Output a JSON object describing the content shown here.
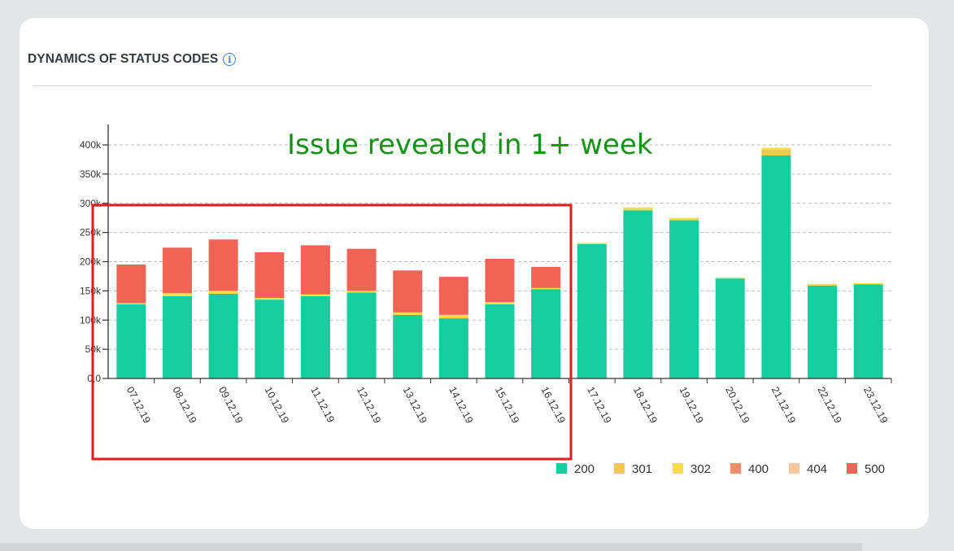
{
  "header": {
    "title": "DYNAMICS OF STATUS CODES",
    "info_icon": "info-icon"
  },
  "annotation": {
    "text": "Issue revealed in 1+ week",
    "color": "#169216"
  },
  "highlight": {
    "color": "#e31b1b",
    "covers": "07.12.19 – 16.12.19"
  },
  "colors": {
    "200": "#16cd9d",
    "301": "#f2c94c",
    "302": "#f7dc47",
    "400": "#f28e6b",
    "404": "#f7c79e",
    "500": "#ef6454"
  },
  "chart_data": {
    "type": "bar",
    "stacked": true,
    "title": "DYNAMICS OF STATUS CODES",
    "xlabel": "",
    "ylabel": "",
    "ylim": [
      0,
      420000
    ],
    "grid": true,
    "legend": "bottom-right",
    "y_ticks": [
      {
        "value": 0,
        "label": "0,0"
      },
      {
        "value": 50000,
        "label": "50k"
      },
      {
        "value": 100000,
        "label": "100k"
      },
      {
        "value": 150000,
        "label": "150k"
      },
      {
        "value": 200000,
        "label": "200k"
      },
      {
        "value": 250000,
        "label": "250k"
      },
      {
        "value": 300000,
        "label": "300k"
      },
      {
        "value": 350000,
        "label": "350k"
      },
      {
        "value": 400000,
        "label": "400k"
      }
    ],
    "categories": [
      "07.12.19",
      "08.12.19",
      "09.12.19",
      "10.12.19",
      "11.12.19",
      "12.12.19",
      "13.12.19",
      "14.12.19",
      "15.12.19",
      "16.12.19",
      "17.12.19",
      "18.12.19",
      "19.12.19",
      "20.12.19",
      "21.12.19",
      "22.12.19",
      "23.12.19"
    ],
    "series": [
      {
        "name": "200",
        "values": [
          127000,
          141000,
          145000,
          135000,
          141000,
          147000,
          109000,
          103000,
          127000,
          153000,
          230000,
          288000,
          271000,
          171000,
          382000,
          159000,
          161000
        ]
      },
      {
        "name": "301",
        "values": [
          0,
          0,
          0,
          0,
          0,
          0,
          0,
          0,
          0,
          0,
          0,
          0,
          0,
          0,
          10000,
          0,
          0
        ]
      },
      {
        "name": "302",
        "values": [
          2000,
          5000,
          5000,
          3000,
          3000,
          3000,
          4000,
          6000,
          4000,
          2000,
          2000,
          5000,
          4000,
          2000,
          3000,
          3000,
          2000
        ]
      },
      {
        "name": "400",
        "values": [
          0,
          0,
          0,
          0,
          0,
          0,
          0,
          0,
          0,
          0,
          0,
          0,
          0,
          0,
          0,
          0,
          0
        ]
      },
      {
        "name": "404",
        "values": [
          0,
          0,
          0,
          0,
          0,
          0,
          0,
          0,
          0,
          0,
          0,
          0,
          0,
          0,
          0,
          0,
          0
        ]
      },
      {
        "name": "500",
        "values": [
          66000,
          78000,
          88000,
          78000,
          84000,
          72000,
          72000,
          65000,
          74000,
          36000,
          0,
          0,
          0,
          0,
          0,
          0,
          0
        ]
      }
    ]
  }
}
